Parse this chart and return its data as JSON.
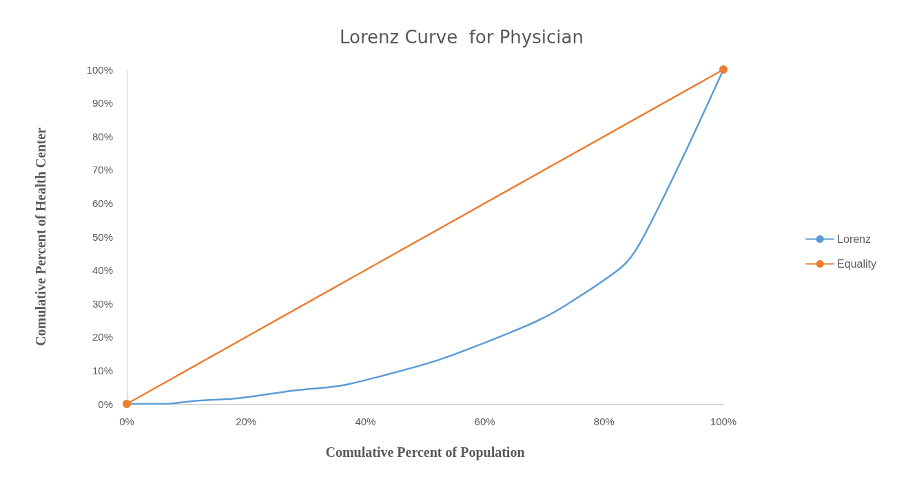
{
  "chart_data": {
    "type": "line",
    "title": "Lorenz Curve  for Physician",
    "xlabel": "Comulative Percent of Population",
    "ylabel": "Comulative Percent of Health Center",
    "xlim": [
      0,
      100
    ],
    "xticks": [
      {
        "value": 0,
        "label": "0%"
      },
      {
        "value": 20,
        "label": "20%"
      },
      {
        "value": 40,
        "label": "40%"
      },
      {
        "value": 60,
        "label": "60%"
      },
      {
        "value": 80,
        "label": "80%"
      },
      {
        "value": 100,
        "label": "100%"
      }
    ],
    "ylim": [
      0,
      100
    ],
    "yticks": [
      {
        "value": 0,
        "label": "0%"
      },
      {
        "value": 10,
        "label": "10%"
      },
      {
        "value": 20,
        "label": "20%"
      },
      {
        "value": 30,
        "label": "30%"
      },
      {
        "value": 40,
        "label": "40%"
      },
      {
        "value": 50,
        "label": "50%"
      },
      {
        "value": 60,
        "label": "60%"
      },
      {
        "value": 70,
        "label": "70%"
      },
      {
        "value": 80,
        "label": "80%"
      },
      {
        "value": 90,
        "label": "90%"
      },
      {
        "value": 100,
        "label": "100%"
      }
    ],
    "grid": false,
    "legend": "right",
    "series": [
      {
        "name": "Lorenz",
        "color": "#5b9bd5",
        "marker": "none",
        "x": [
          0,
          6,
          12,
          18,
          24,
          28,
          36,
          43,
          52,
          61,
          69,
          74,
          83,
          86,
          93,
          100
        ],
        "values": [
          0,
          0,
          1,
          1.6,
          3,
          4,
          5.5,
          8.5,
          13,
          19,
          25,
          30,
          41,
          48,
          73,
          100
        ]
      },
      {
        "name": "Equality",
        "color": "#ed7d31",
        "marker": "circle",
        "x": [
          0,
          100
        ],
        "values": [
          0,
          100
        ]
      }
    ]
  }
}
